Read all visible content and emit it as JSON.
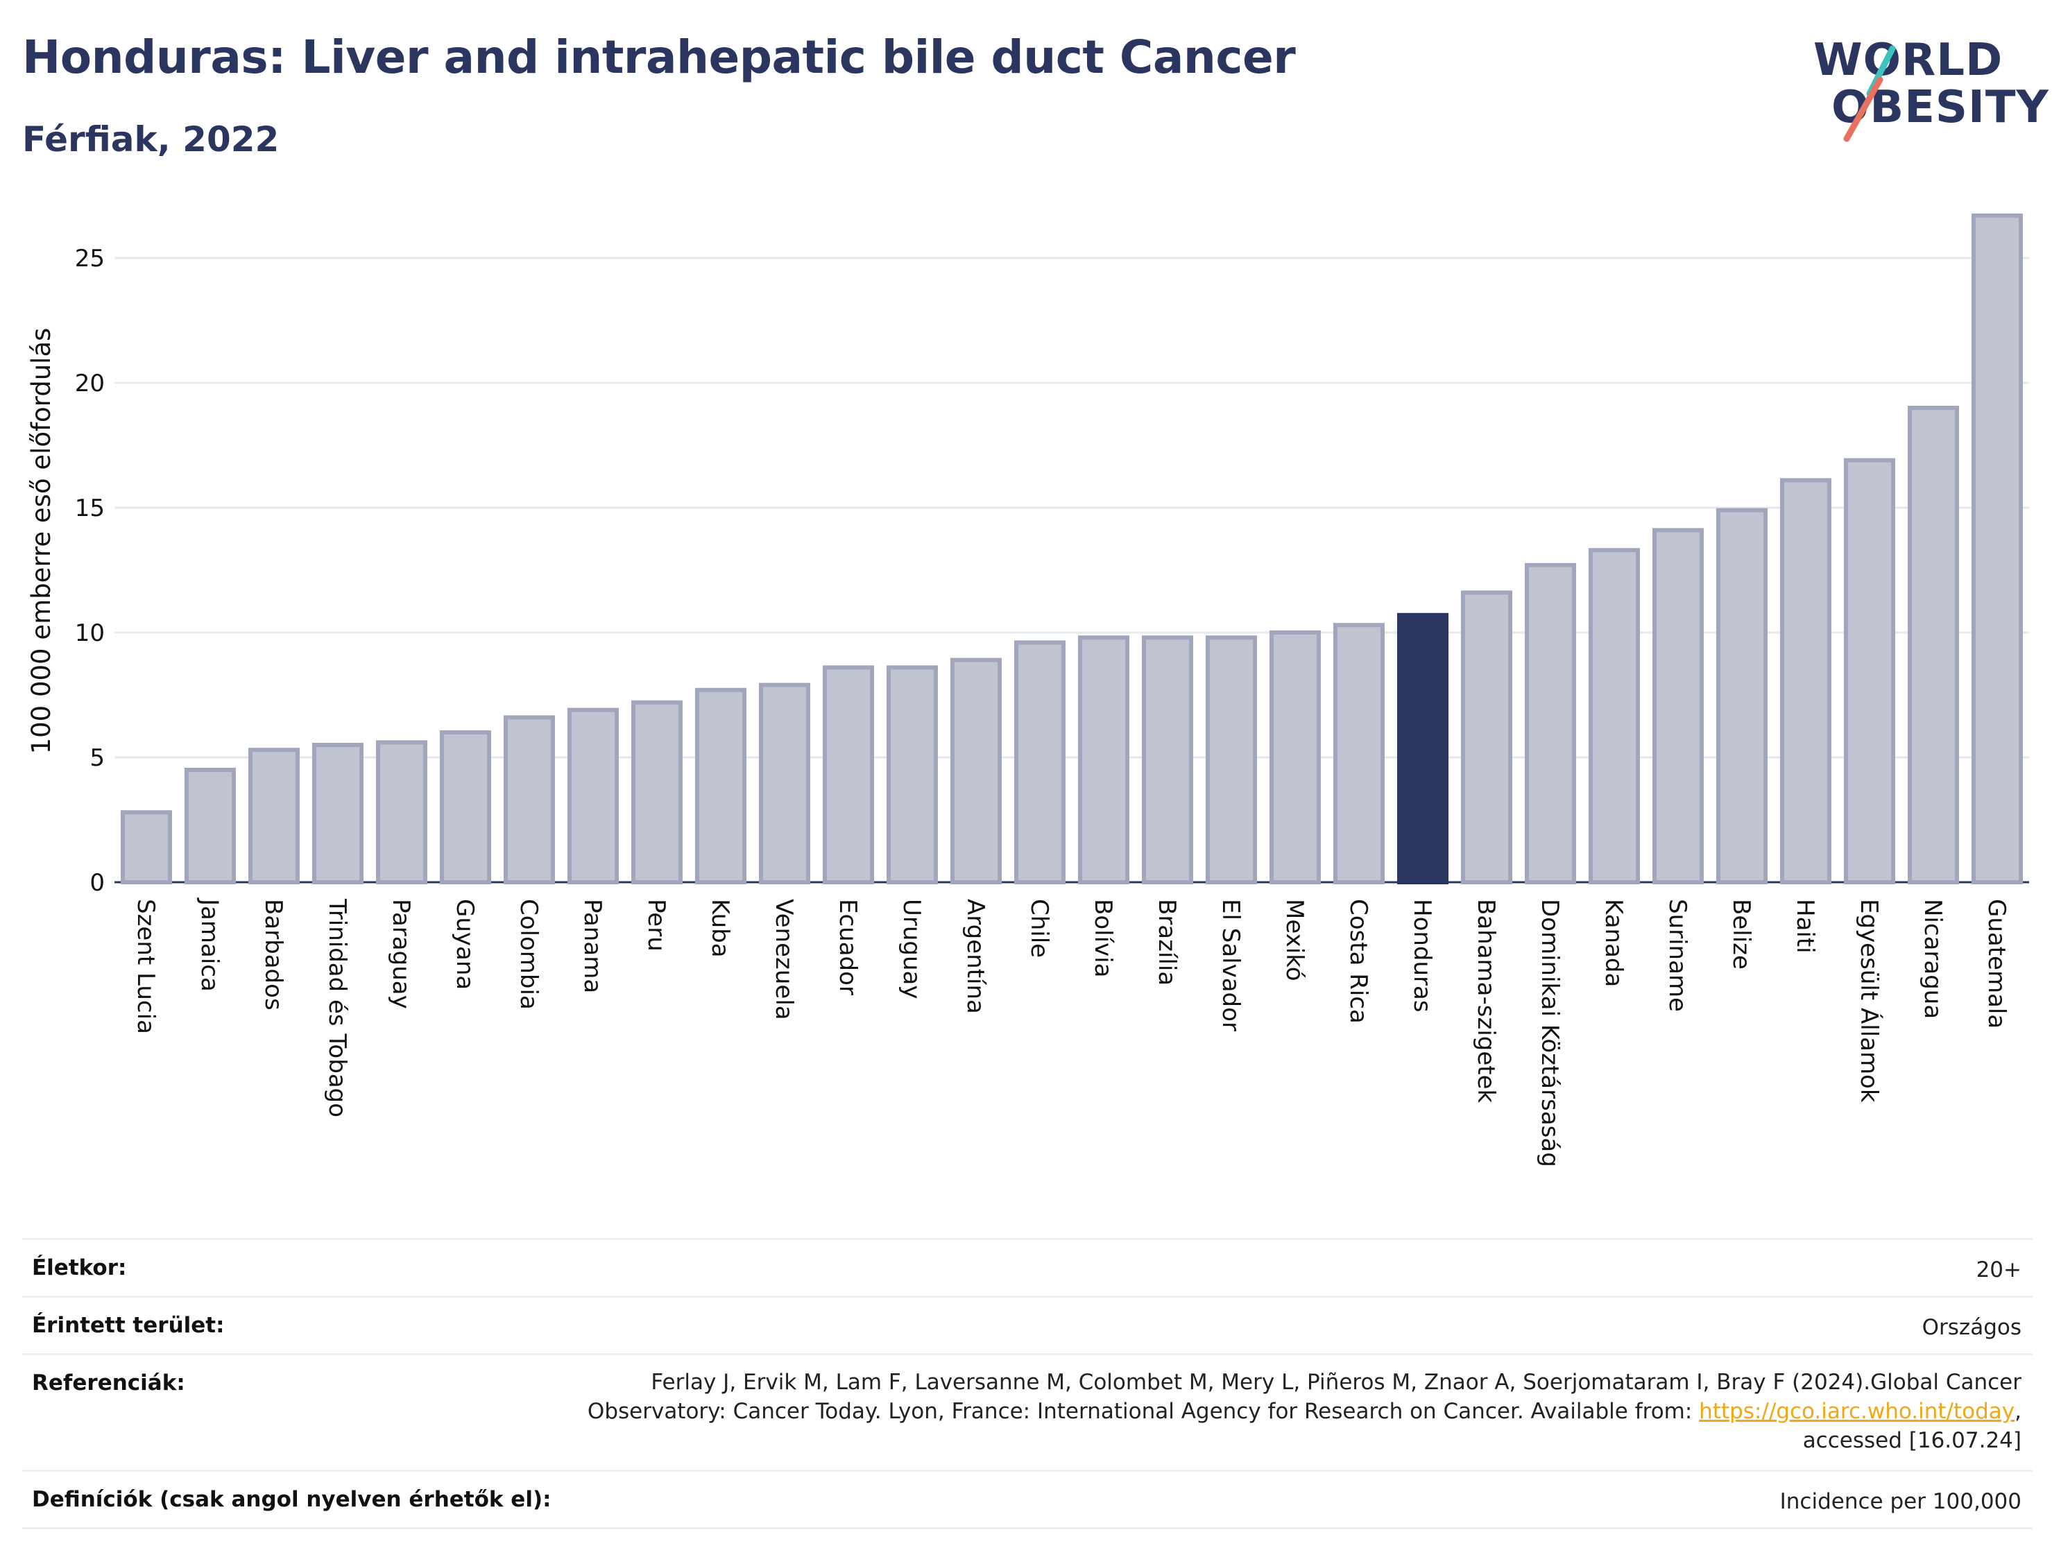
{
  "header": {
    "title": "Honduras: Liver and intrahepatic bile duct Cancer",
    "subtitle": "Férfiak, 2022"
  },
  "logo": {
    "line1": "WORLD",
    "line2": "OBESITY"
  },
  "chart_data": {
    "type": "bar",
    "ylabel": "100 000 emberre eső előfordulás",
    "xlabel": "",
    "ylim": [
      0,
      27
    ],
    "yticks": [
      0,
      5,
      10,
      15,
      20,
      25
    ],
    "grid": true,
    "highlight": "Honduras",
    "colors": {
      "bar": "#c0c3d0",
      "bar_edge": "#a1a6bc",
      "highlight": "#2b3660"
    },
    "categories": [
      "Szent Lucia",
      "Jamaica",
      "Barbados",
      "Trinidad és Tobago",
      "Paraguay",
      "Guyana",
      "Colombia",
      "Panama",
      "Peru",
      "Kuba",
      "Venezuela",
      "Ecuador",
      "Uruguay",
      "Argentína",
      "Chile",
      "Bolívia",
      "Brazília",
      "El Salvador",
      "Mexikó",
      "Costa Rica",
      "Honduras",
      "Bahama-szigetek",
      "Dominikai Köztársaság",
      "Kanada",
      "Suriname",
      "Belize",
      "Haiti",
      "Egyesült Államok",
      "Nicaragua",
      "Guatemala"
    ],
    "values": [
      2.8,
      4.5,
      5.3,
      5.5,
      5.6,
      6.0,
      6.6,
      6.9,
      7.2,
      7.7,
      7.9,
      8.6,
      8.6,
      8.9,
      9.6,
      9.8,
      9.8,
      9.8,
      10.0,
      10.3,
      10.7,
      11.6,
      12.7,
      13.3,
      14.1,
      14.9,
      16.1,
      16.9,
      19.0,
      26.7
    ]
  },
  "info": {
    "age_label": "Életkor:",
    "age_value": "20+",
    "area_label": "Érintett terület:",
    "area_value": "Országos",
    "ref_label": "Referenciák:",
    "ref_line1": "Ferlay J, Ervik M, Lam F, Laversanne M, Colombet M, Mery L, Piñeros M, Znaor A, Soerjomataram I, Bray F (2024).Global Cancer",
    "ref_line2": "Observatory: Cancer Today. Lyon, France: International Agency for Research on Cancer. Available from:",
    "ref_link": "https://gco.iarc.who.int/today",
    "ref_line3": "accessed [16.07.24]",
    "def_label": "Definíciók (csak angol nyelven érhetők el):",
    "def_value": "Incidence per 100,000"
  }
}
